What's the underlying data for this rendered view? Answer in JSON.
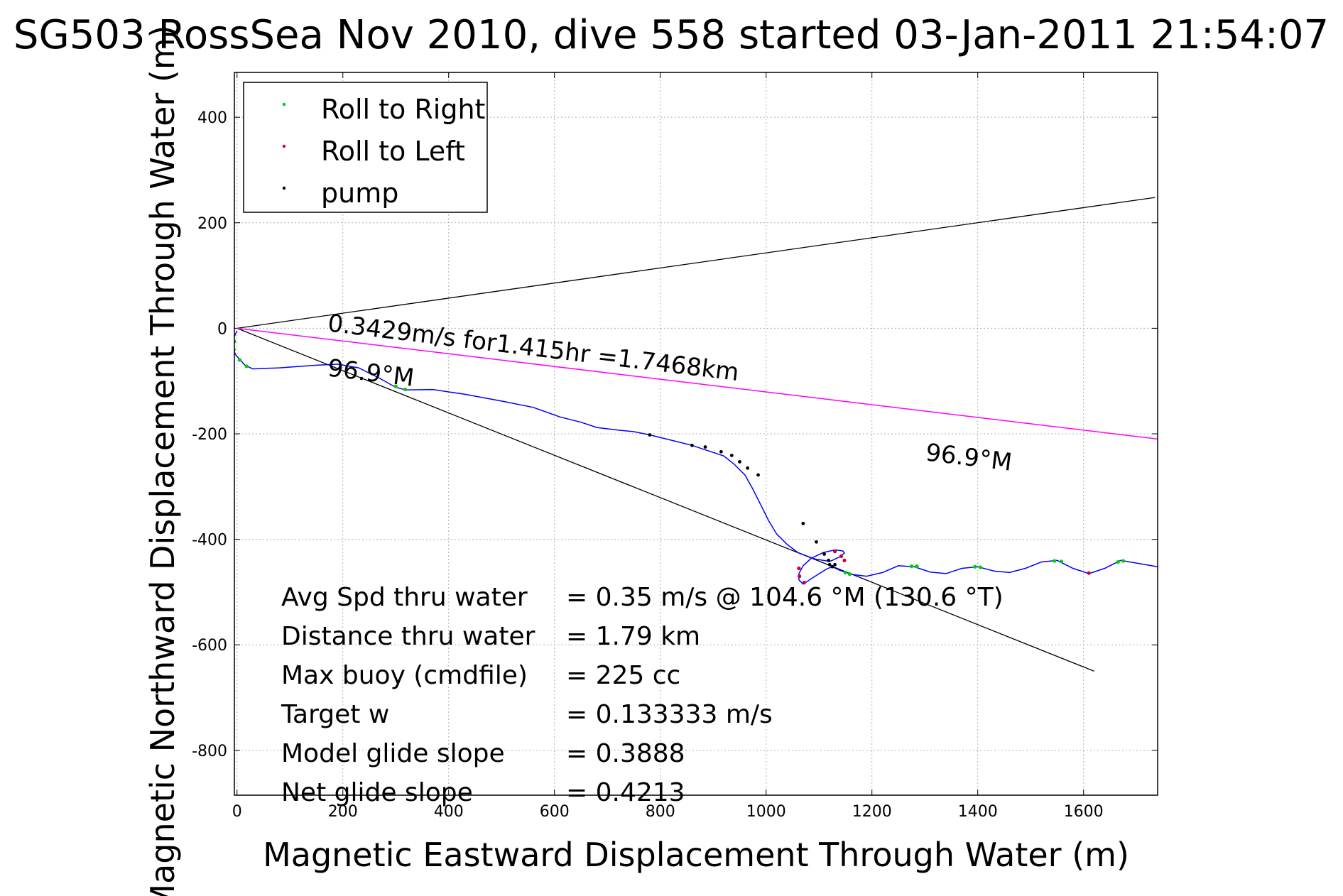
{
  "chart_data": {
    "type": "line",
    "title": "SG503 RossSea Nov 2010, dive 558 started 03-Jan-2011 21:54:07",
    "xlabel": "Magnetic Eastward Displacement Through Water (m)",
    "ylabel": "Magnetic Northward Displacement Through Water (m)",
    "xlim": [
      -5,
      1740
    ],
    "ylim": [
      -885,
      485
    ],
    "xticks": [
      0,
      200,
      400,
      600,
      800,
      1000,
      1200,
      1400,
      1600
    ],
    "yticks": [
      -800,
      -600,
      -400,
      -200,
      0,
      200,
      400
    ],
    "grid": true,
    "legend_position": "top-left",
    "colors": {
      "track": "#0000ff",
      "roll_right": "#00cc00",
      "roll_left": "#cc0033",
      "pump": "#000000",
      "heading_line": "#ff00ff",
      "bounds": "#000000"
    },
    "legend": [
      {
        "label": "Roll to Right",
        "color": "#00cc00"
      },
      {
        "label": "Roll to Left",
        "color": "#cc0033"
      },
      {
        "label": "pump",
        "color": "#000000"
      }
    ],
    "track": {
      "x": [
        0,
        -7,
        -8,
        -3,
        8,
        15,
        30,
        80,
        150,
        190,
        230,
        270,
        300,
        320,
        370,
        430,
        500,
        560,
        610,
        650,
        680,
        720,
        750,
        780,
        820,
        860,
        890,
        920,
        940,
        960,
        975,
        990,
        1005,
        1020,
        1040,
        1060,
        1080,
        1095,
        1108,
        1115,
        1120,
        1125,
        1140,
        1148,
        1145,
        1130,
        1108,
        1085,
        1070,
        1062,
        1062,
        1070,
        1085,
        1102,
        1115,
        1125,
        1140,
        1165,
        1190,
        1220,
        1250,
        1280,
        1310,
        1340,
        1370,
        1400,
        1430,
        1460,
        1490,
        1520,
        1550,
        1580,
        1610,
        1640,
        1670,
        1700,
        1740
      ],
      "y": [
        -5,
        -20,
        -35,
        -50,
        -62,
        -70,
        -77,
        -75,
        -70,
        -68,
        -75,
        -95,
        -112,
        -117,
        -116,
        -125,
        -138,
        -150,
        -168,
        -178,
        -188,
        -193,
        -196,
        -202,
        -212,
        -222,
        -232,
        -242,
        -258,
        -278,
        -305,
        -335,
        -365,
        -390,
        -410,
        -425,
        -433,
        -438,
        -440,
        -441,
        -442,
        -440,
        -433,
        -426,
        -422,
        -420,
        -425,
        -436,
        -450,
        -465,
        -477,
        -485,
        -475,
        -464,
        -456,
        -452,
        -459,
        -467,
        -470,
        -463,
        -450,
        -452,
        -462,
        -465,
        -455,
        -452,
        -460,
        -463,
        -455,
        -443,
        -440,
        -455,
        -465,
        -455,
        -440,
        -445,
        -452
      ]
    },
    "roll_right_points": [
      {
        "x": -5,
        "y": -25
      },
      {
        "x": -6,
        "y": -40
      },
      {
        "x": 5,
        "y": -60
      },
      {
        "x": 18,
        "y": -72
      },
      {
        "x": 300,
        "y": -110
      },
      {
        "x": 318,
        "y": -116
      },
      {
        "x": 1150,
        "y": -463
      },
      {
        "x": 1158,
        "y": -466
      },
      {
        "x": 1275,
        "y": -451
      },
      {
        "x": 1285,
        "y": -451
      },
      {
        "x": 1395,
        "y": -452
      },
      {
        "x": 1405,
        "y": -453
      },
      {
        "x": 1545,
        "y": -441
      },
      {
        "x": 1558,
        "y": -442
      },
      {
        "x": 1665,
        "y": -443
      },
      {
        "x": 1675,
        "y": -441
      }
    ],
    "roll_left_points": [
      {
        "x": 1062,
        "y": -455
      },
      {
        "x": 1063,
        "y": -470
      },
      {
        "x": 1072,
        "y": -482
      },
      {
        "x": 1130,
        "y": -423
      },
      {
        "x": 1142,
        "y": -432
      },
      {
        "x": 1148,
        "y": -440
      },
      {
        "x": 1610,
        "y": -464
      }
    ],
    "pump_points": [
      {
        "x": 780,
        "y": -202
      },
      {
        "x": 860,
        "y": -222
      },
      {
        "x": 885,
        "y": -225
      },
      {
        "x": 915,
        "y": -234
      },
      {
        "x": 935,
        "y": -241
      },
      {
        "x": 950,
        "y": -253
      },
      {
        "x": 965,
        "y": -265
      },
      {
        "x": 985,
        "y": -278
      },
      {
        "x": 1070,
        "y": -370
      },
      {
        "x": 1095,
        "y": -405
      },
      {
        "x": 1110,
        "y": -428
      },
      {
        "x": 1118,
        "y": -440
      },
      {
        "x": 1120,
        "y": -448
      },
      {
        "x": 1125,
        "y": -452
      },
      {
        "x": 1130,
        "y": -448
      }
    ],
    "heading_line": {
      "x": [
        0,
        1740
      ],
      "y": [
        0,
        -210
      ]
    },
    "bound_lines": [
      {
        "x": [
          0,
          1735
        ],
        "y": [
          0,
          248
        ]
      },
      {
        "x": [
          0,
          1620
        ],
        "y": [
          0,
          -650
        ]
      }
    ],
    "annotations": [
      {
        "text": "0.3429m/s for1.415hr =1.7468km",
        "x": 170,
        "y": -5,
        "rotation": 6.9
      },
      {
        "text": "96.9°M",
        "x": 170,
        "y": -90,
        "rotation": 6.9
      },
      {
        "text": "96.9°M",
        "x": 1300,
        "y": -250,
        "rotation": 6.9
      }
    ],
    "stats": [
      {
        "label": "Avg Spd thru water",
        "value": "=  0.35 m/s @ 104.6 °M (130.6 °T)"
      },
      {
        "label": "Distance thru water",
        "value": "=  1.79 km"
      },
      {
        "label": "Max buoy (cmdfile)",
        "value": "= 225 cc"
      },
      {
        "label": "Target w",
        "value": "= 0.133333 m/s"
      },
      {
        "label": "Model glide slope",
        "value": "= 0.3888"
      },
      {
        "label": "Net glide slope",
        "value": "= 0.4213"
      }
    ]
  }
}
